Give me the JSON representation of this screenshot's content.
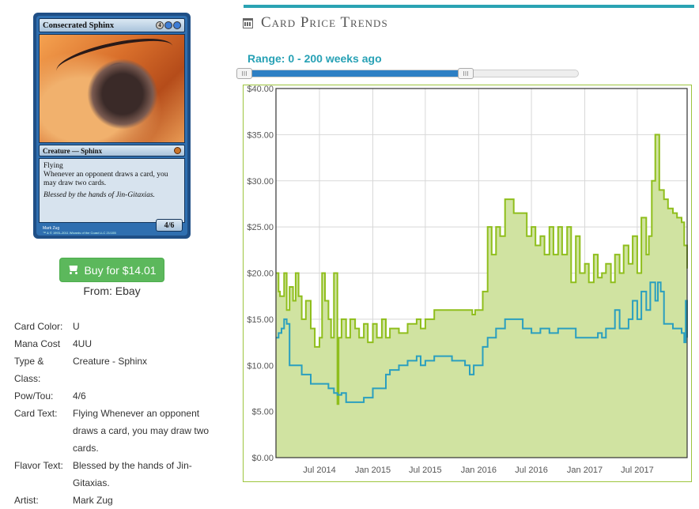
{
  "card": {
    "name": "Consecrated Sphinx",
    "mana_symbols": [
      "4",
      "U",
      "U"
    ],
    "type_line": "Creature — Sphinx",
    "rules_text": "Flying\nWhenever an opponent draws a card, you may draw two cards.",
    "flavor_text": "Blessed by the hands of Jin-Gitaxias.",
    "pt": "4/6",
    "artist_credit": "Mark Zug",
    "copyright": "™ & © 1993–2011 Wizards of the Coast LLC 21/155"
  },
  "buy": {
    "label": "Buy for $14.01",
    "from": "From: Ebay"
  },
  "details": [
    {
      "label": "Card Color:",
      "value": "U"
    },
    {
      "label": "Mana Cost",
      "value": "4UU"
    },
    {
      "label": "Type & Class:",
      "value": "Creature - Sphinx"
    },
    {
      "label": "Pow/Tou:",
      "value": "4/6"
    },
    {
      "label": "Card Text:",
      "value": "Flying Whenever an opponent draws a card, you may draw two cards."
    },
    {
      "label": "Flavor Text:",
      "value": "Blessed by the hands of Jin-Gitaxias."
    },
    {
      "label": "Artist:",
      "value": "Mark Zug"
    }
  ],
  "panel": {
    "title": "Card Price Trends",
    "range_label": "Range: 0 - 200 weeks ago"
  },
  "slider": {
    "min": 0,
    "max": 200,
    "low": 0,
    "high": 200,
    "track_max_fraction": 0.67
  },
  "colors": {
    "accent": "#2aa3b3",
    "green_series": "#8fbe1c",
    "green_fill": "#d0e3a1",
    "blue_series": "#2a9fbf",
    "buy_button": "#5cb85c"
  },
  "chart_data": {
    "type": "area",
    "title": "",
    "xlabel": "",
    "ylabel": "",
    "x_ticks": [
      "Jul 2014",
      "Jan 2015",
      "Jul 2015",
      "Jan 2016",
      "Jul 2016",
      "Jan 2017",
      "Jul 2017"
    ],
    "y_ticks": [
      "$0.00",
      "$5.00",
      "$10.00",
      "$15.00",
      "$20.00",
      "$25.00",
      "$30.00",
      "$35.00",
      "$40.00"
    ],
    "ylim": [
      0,
      40
    ],
    "xlim": [
      "2014-02-01",
      "2017-12-20"
    ],
    "grid": true,
    "series": [
      {
        "kind": "area",
        "x": [
          "2014-02-01",
          "2014-02-10",
          "2014-02-15",
          "2014-03-01",
          "2014-03-10",
          "2014-03-20",
          "2014-04-01",
          "2014-04-10",
          "2014-04-20",
          "2014-05-01",
          "2014-05-15",
          "2014-06-01",
          "2014-06-15",
          "2014-07-01",
          "2014-07-10",
          "2014-07-20",
          "2014-08-01",
          "2014-08-10",
          "2014-08-20",
          "2014-09-01",
          "2014-09-05",
          "2014-09-15",
          "2014-10-01",
          "2014-10-15",
          "2014-11-01",
          "2014-11-15",
          "2014-12-01",
          "2014-12-15",
          "2015-01-01",
          "2015-01-15",
          "2015-02-01",
          "2015-02-15",
          "2015-03-01",
          "2015-04-01",
          "2015-05-01",
          "2015-06-01",
          "2015-06-15",
          "2015-07-01",
          "2015-08-01",
          "2015-09-01",
          "2015-10-01",
          "2015-11-01",
          "2015-12-01",
          "2015-12-10",
          "2015-12-20",
          "2016-01-01",
          "2016-01-15",
          "2016-02-01",
          "2016-02-15",
          "2016-03-01",
          "2016-03-15",
          "2016-04-01",
          "2016-05-01",
          "2016-06-01",
          "2016-06-15",
          "2016-07-01",
          "2016-07-15",
          "2016-08-01",
          "2016-08-15",
          "2016-09-01",
          "2016-09-15",
          "2016-10-01",
          "2016-10-15",
          "2016-11-01",
          "2016-11-15",
          "2016-12-01",
          "2016-12-15",
          "2017-01-01",
          "2017-01-15",
          "2017-02-01",
          "2017-02-15",
          "2017-03-01",
          "2017-03-15",
          "2017-04-01",
          "2017-04-15",
          "2017-05-01",
          "2017-05-15",
          "2017-06-01",
          "2017-06-15",
          "2017-07-01",
          "2017-07-15",
          "2017-08-01",
          "2017-08-10",
          "2017-08-20",
          "2017-09-01",
          "2017-09-15",
          "2017-10-01",
          "2017-10-15",
          "2017-11-01",
          "2017-11-15",
          "2017-12-01",
          "2017-12-10",
          "2017-12-20"
        ],
        "y": [
          20.0,
          18.0,
          17.5,
          20.0,
          16.0,
          18.5,
          17.0,
          20.0,
          17.5,
          15.0,
          17.0,
          14.0,
          12.0,
          13.0,
          20.0,
          17.0,
          15.0,
          13.0,
          20.0,
          5.8,
          13.0,
          15.0,
          13.0,
          15.0,
          14.0,
          13.0,
          14.5,
          12.5,
          14.5,
          13.0,
          15.0,
          13.0,
          14.0,
          13.5,
          14.5,
          15.0,
          14.0,
          15.0,
          16.0,
          16.0,
          16.0,
          16.0,
          16.0,
          15.5,
          16.0,
          16.0,
          18.0,
          25.0,
          22.0,
          25.0,
          24.0,
          28.0,
          26.5,
          26.5,
          24.0,
          25.0,
          23.0,
          24.0,
          22.0,
          25.0,
          22.0,
          25.0,
          22.0,
          25.0,
          19.0,
          24.0,
          20.0,
          21.0,
          19.0,
          22.0,
          19.5,
          20.0,
          21.0,
          19.0,
          22.0,
          20.0,
          23.0,
          21.0,
          24.0,
          20.0,
          26.0,
          22.0,
          24.0,
          30.0,
          35.0,
          29.0,
          28.0,
          27.0,
          26.5,
          26.0,
          25.5,
          23.0,
          20.5
        ]
      },
      {
        "kind": "line",
        "x": [
          "2014-02-01",
          "2014-02-10",
          "2014-02-20",
          "2014-03-01",
          "2014-03-10",
          "2014-03-20",
          "2014-04-01",
          "2014-04-15",
          "2014-05-01",
          "2014-06-01",
          "2014-07-01",
          "2014-08-01",
          "2014-08-20",
          "2014-09-01",
          "2014-09-15",
          "2014-10-01",
          "2014-11-01",
          "2014-11-15",
          "2014-12-01",
          "2015-01-01",
          "2015-02-01",
          "2015-02-15",
          "2015-03-01",
          "2015-04-01",
          "2015-05-01",
          "2015-06-01",
          "2015-06-15",
          "2015-07-01",
          "2015-08-01",
          "2015-09-01",
          "2015-10-01",
          "2015-11-01",
          "2015-11-15",
          "2015-12-01",
          "2015-12-15",
          "2016-01-01",
          "2016-01-15",
          "2016-02-01",
          "2016-03-01",
          "2016-04-01",
          "2016-05-01",
          "2016-06-01",
          "2016-07-01",
          "2016-08-01",
          "2016-09-01",
          "2016-10-01",
          "2016-11-01",
          "2016-12-01",
          "2017-01-01",
          "2017-02-01",
          "2017-02-15",
          "2017-03-01",
          "2017-03-15",
          "2017-04-01",
          "2017-04-15",
          "2017-05-01",
          "2017-06-01",
          "2017-06-15",
          "2017-07-01",
          "2017-07-15",
          "2017-08-01",
          "2017-08-15",
          "2017-09-01",
          "2017-09-10",
          "2017-09-20",
          "2017-10-01",
          "2017-11-01",
          "2017-12-01",
          "2017-12-10",
          "2017-12-15",
          "2017-12-20"
        ],
        "y": [
          13.0,
          13.5,
          14.0,
          15.0,
          14.5,
          10.0,
          10.0,
          10.0,
          9.0,
          8.0,
          8.0,
          7.5,
          7.0,
          6.8,
          7.0,
          6.0,
          6.0,
          6.0,
          6.5,
          7.5,
          7.5,
          9.0,
          9.5,
          10.0,
          10.5,
          11.0,
          10.0,
          10.5,
          11.0,
          11.0,
          10.5,
          10.5,
          10.0,
          9.0,
          10.0,
          10.0,
          12.0,
          13.0,
          14.0,
          15.0,
          15.0,
          14.0,
          13.5,
          14.0,
          13.5,
          14.0,
          14.0,
          13.0,
          13.0,
          13.0,
          13.5,
          13.0,
          14.0,
          14.0,
          16.0,
          14.0,
          15.0,
          17.0,
          15.0,
          18.0,
          16.0,
          19.0,
          17.0,
          19.0,
          18.0,
          14.5,
          14.0,
          13.5,
          12.5,
          17.0,
          13.0
        ]
      }
    ]
  }
}
